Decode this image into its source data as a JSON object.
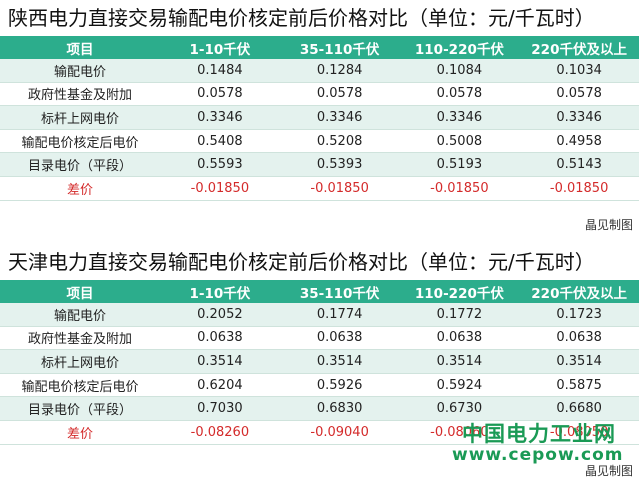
{
  "tables": [
    {
      "title": "陕西电力直接交易输配电价核定前后价格对比（单位：元/千瓦时）",
      "headers": [
        "项目",
        "1-10千伏",
        "35-110千伏",
        "110-220千伏",
        "220千伏及以上"
      ],
      "rows": [
        [
          "输配电价",
          "0.1484",
          "0.1284",
          "0.1084",
          "0.1034"
        ],
        [
          "政府性基金及附加",
          "0.0578",
          "0.0578",
          "0.0578",
          "0.0578"
        ],
        [
          "标杆上网电价",
          "0.3346",
          "0.3346",
          "0.3346",
          "0.3346"
        ],
        [
          "输配电价核定后电价",
          "0.5408",
          "0.5208",
          "0.5008",
          "0.4958"
        ],
        [
          "目录电价（平段）",
          "0.5593",
          "0.5393",
          "0.5193",
          "0.5143"
        ],
        [
          "差价",
          "-0.01850",
          "-0.01850",
          "-0.01850",
          "-0.01850"
        ]
      ],
      "source": "晶见制图"
    },
    {
      "title": "天津电力直接交易输配电价核定前后价格对比（单位：元/千瓦时）",
      "headers": [
        "项目",
        "1-10千伏",
        "35-110千伏",
        "110-220千伏",
        "220千伏及以上"
      ],
      "rows": [
        [
          "输配电价",
          "0.2052",
          "0.1774",
          "0.1772",
          "0.1723"
        ],
        [
          "政府性基金及附加",
          "0.0638",
          "0.0638",
          "0.0638",
          "0.0638"
        ],
        [
          "标杆上网电价",
          "0.3514",
          "0.3514",
          "0.3514",
          "0.3514"
        ],
        [
          "输配电价核定后电价",
          "0.6204",
          "0.5926",
          "0.5924",
          "0.5875"
        ],
        [
          "目录电价（平段）",
          "0.7030",
          "0.6830",
          "0.6730",
          "0.6680"
        ],
        [
          "差价",
          "-0.08260",
          "-0.09040",
          "-0.08060",
          "-0.08050"
        ]
      ],
      "source": "晶见制图"
    }
  ],
  "watermark": {
    "line1": "中国电力工业网",
    "line2": "www.cepow.com"
  },
  "colors": {
    "header_bg": "#2cad8c",
    "stripe_bg": "#e4f2ee",
    "diff_text": "#d42b2b",
    "watermark": "#1a9a55"
  }
}
